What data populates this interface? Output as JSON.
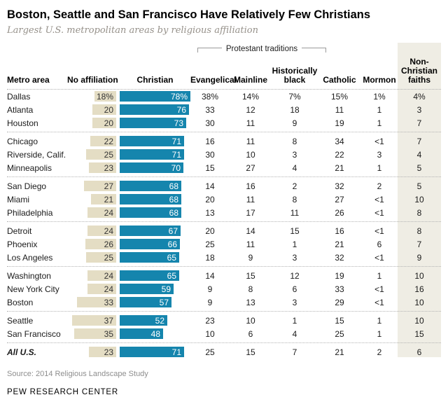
{
  "title": "Boston, Seattle and San Francisco Have Relatively Few Christians",
  "subtitle": "Largest U.S. metropolitan areas by religious affiliation",
  "bracket_label": "Protestant traditions",
  "headers": {
    "metro": "Metro area",
    "no_affiliation": "No affiliation",
    "christian": "Christian",
    "evangelical": "Evangelical",
    "mainline": "Mainline",
    "historically_black": "Historically black",
    "catholic": "Catholic",
    "mormon": "Mormon",
    "non_christian": "Non-Christian faiths"
  },
  "colors": {
    "christian_bar": "#1585ad",
    "no_affiliation_bar": "#e4ddc4",
    "non_christian_band": "#efede4"
  },
  "source": "Source: 2014 Religious Landscape Study",
  "brand": "PEW RESEARCH CENTER",
  "chart_data": {
    "type": "table",
    "title": "Boston, Seattle and San Francisco Have Relatively Few Christians",
    "columns": [
      "Metro area",
      "No affiliation",
      "Christian",
      "Evangelical",
      "Mainline",
      "Historically black",
      "Catholic",
      "Mormon",
      "Non-Christian faiths"
    ],
    "protestant_traditions_columns": [
      "Evangelical",
      "Mainline",
      "Historically black"
    ],
    "rows": [
      {
        "metro": "Dallas",
        "no_aff": "18%",
        "no_aff_v": 18,
        "christian": "78%",
        "christian_v": 78,
        "evangelical": "38%",
        "mainline": "14%",
        "hist_black": "7%",
        "catholic": "15%",
        "mormon": "1%",
        "non_christian": "4%",
        "sep_after": false,
        "bold": false
      },
      {
        "metro": "Atlanta",
        "no_aff": "20",
        "no_aff_v": 20,
        "christian": "76",
        "christian_v": 76,
        "evangelical": "33",
        "mainline": "12",
        "hist_black": "18",
        "catholic": "11",
        "mormon": "1",
        "non_christian": "3",
        "sep_after": false,
        "bold": false
      },
      {
        "metro": "Houston",
        "no_aff": "20",
        "no_aff_v": 20,
        "christian": "73",
        "christian_v": 73,
        "evangelical": "30",
        "mainline": "11",
        "hist_black": "9",
        "catholic": "19",
        "mormon": "1",
        "non_christian": "7",
        "sep_after": true,
        "bold": false
      },
      {
        "metro": "Chicago",
        "no_aff": "22",
        "no_aff_v": 22,
        "christian": "71",
        "christian_v": 71,
        "evangelical": "16",
        "mainline": "11",
        "hist_black": "8",
        "catholic": "34",
        "mormon": "<1",
        "non_christian": "7",
        "sep_after": false,
        "bold": false
      },
      {
        "metro": "Riverside, Calif.",
        "no_aff": "25",
        "no_aff_v": 25,
        "christian": "71",
        "christian_v": 71,
        "evangelical": "30",
        "mainline": "10",
        "hist_black": "3",
        "catholic": "22",
        "mormon": "3",
        "non_christian": "4",
        "sep_after": false,
        "bold": false
      },
      {
        "metro": "Minneapolis",
        "no_aff": "23",
        "no_aff_v": 23,
        "christian": "70",
        "christian_v": 70,
        "evangelical": "15",
        "mainline": "27",
        "hist_black": "4",
        "catholic": "21",
        "mormon": "1",
        "non_christian": "5",
        "sep_after": true,
        "bold": false
      },
      {
        "metro": "San Diego",
        "no_aff": "27",
        "no_aff_v": 27,
        "christian": "68",
        "christian_v": 68,
        "evangelical": "14",
        "mainline": "16",
        "hist_black": "2",
        "catholic": "32",
        "mormon": "2",
        "non_christian": "5",
        "sep_after": false,
        "bold": false
      },
      {
        "metro": "Miami",
        "no_aff": "21",
        "no_aff_v": 21,
        "christian": "68",
        "christian_v": 68,
        "evangelical": "20",
        "mainline": "11",
        "hist_black": "8",
        "catholic": "27",
        "mormon": "<1",
        "non_christian": "10",
        "sep_after": false,
        "bold": false
      },
      {
        "metro": "Philadelphia",
        "no_aff": "24",
        "no_aff_v": 24,
        "christian": "68",
        "christian_v": 68,
        "evangelical": "13",
        "mainline": "17",
        "hist_black": "11",
        "catholic": "26",
        "mormon": "<1",
        "non_christian": "8",
        "sep_after": true,
        "bold": false
      },
      {
        "metro": "Detroit",
        "no_aff": "24",
        "no_aff_v": 24,
        "christian": "67",
        "christian_v": 67,
        "evangelical": "20",
        "mainline": "14",
        "hist_black": "15",
        "catholic": "16",
        "mormon": "<1",
        "non_christian": "8",
        "sep_after": false,
        "bold": false
      },
      {
        "metro": "Phoenix",
        "no_aff": "26",
        "no_aff_v": 26,
        "christian": "66",
        "christian_v": 66,
        "evangelical": "25",
        "mainline": "11",
        "hist_black": "1",
        "catholic": "21",
        "mormon": "6",
        "non_christian": "7",
        "sep_after": false,
        "bold": false
      },
      {
        "metro": "Los Angeles",
        "no_aff": "25",
        "no_aff_v": 25,
        "christian": "65",
        "christian_v": 65,
        "evangelical": "18",
        "mainline": "9",
        "hist_black": "3",
        "catholic": "32",
        "mormon": "<1",
        "non_christian": "9",
        "sep_after": true,
        "bold": false
      },
      {
        "metro": "Washington",
        "no_aff": "24",
        "no_aff_v": 24,
        "christian": "65",
        "christian_v": 65,
        "evangelical": "14",
        "mainline": "15",
        "hist_black": "12",
        "catholic": "19",
        "mormon": "1",
        "non_christian": "10",
        "sep_after": false,
        "bold": false
      },
      {
        "metro": "New York City",
        "no_aff": "24",
        "no_aff_v": 24,
        "christian": "59",
        "christian_v": 59,
        "evangelical": "9",
        "mainline": "8",
        "hist_black": "6",
        "catholic": "33",
        "mormon": "<1",
        "non_christian": "16",
        "sep_after": false,
        "bold": false
      },
      {
        "metro": "Boston",
        "no_aff": "33",
        "no_aff_v": 33,
        "christian": "57",
        "christian_v": 57,
        "evangelical": "9",
        "mainline": "13",
        "hist_black": "3",
        "catholic": "29",
        "mormon": "<1",
        "non_christian": "10",
        "sep_after": true,
        "bold": false
      },
      {
        "metro": "Seattle",
        "no_aff": "37",
        "no_aff_v": 37,
        "christian": "52",
        "christian_v": 52,
        "evangelical": "23",
        "mainline": "10",
        "hist_black": "1",
        "catholic": "15",
        "mormon": "1",
        "non_christian": "10",
        "sep_after": false,
        "bold": false
      },
      {
        "metro": "San Francisco",
        "no_aff": "35",
        "no_aff_v": 35,
        "christian": "48",
        "christian_v": 48,
        "evangelical": "10",
        "mainline": "6",
        "hist_black": "4",
        "catholic": "25",
        "mormon": "1",
        "non_christian": "15",
        "sep_after": true,
        "bold": false
      },
      {
        "metro": "All U.S.",
        "no_aff": "23",
        "no_aff_v": 23,
        "christian": "71",
        "christian_v": 71,
        "evangelical": "25",
        "mainline": "15",
        "hist_black": "7",
        "catholic": "21",
        "mormon": "2",
        "non_christian": "6",
        "sep_after": false,
        "bold": true
      }
    ]
  }
}
